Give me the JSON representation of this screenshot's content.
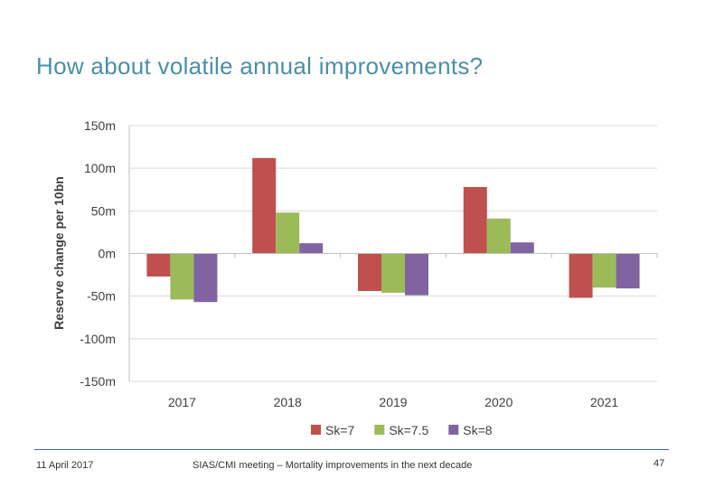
{
  "slide": {
    "title": "How about volatile annual improvements?"
  },
  "footer": {
    "date": "11 April 2017",
    "meeting": "SIAS/CMI meeting – Mortality improvements in the next decade",
    "page_number": "47"
  },
  "chart_data": {
    "type": "bar",
    "title": "",
    "xlabel": "",
    "ylabel": "Reserve change per 10bn",
    "categories": [
      "2017",
      "2018",
      "2019",
      "2020",
      "2021"
    ],
    "ylim": [
      -150,
      150
    ],
    "yticks": [
      150,
      100,
      50,
      0,
      -50,
      -100,
      -150
    ],
    "ytick_labels": [
      "150m",
      "100m",
      "50m",
      "0m",
      "-50m",
      "-100m",
      "-150m"
    ],
    "grid": true,
    "legend_position": "bottom",
    "series": [
      {
        "name": "Sk=7",
        "color": "#c0504d",
        "values": [
          -27,
          112,
          -44,
          78,
          -52
        ]
      },
      {
        "name": "Sk=7.5",
        "color": "#9bbb59",
        "values": [
          -54,
          48,
          -46,
          41,
          -40
        ]
      },
      {
        "name": "Sk=8",
        "color": "#8064a2",
        "values": [
          -57,
          12,
          -49,
          13,
          -41
        ]
      }
    ]
  }
}
